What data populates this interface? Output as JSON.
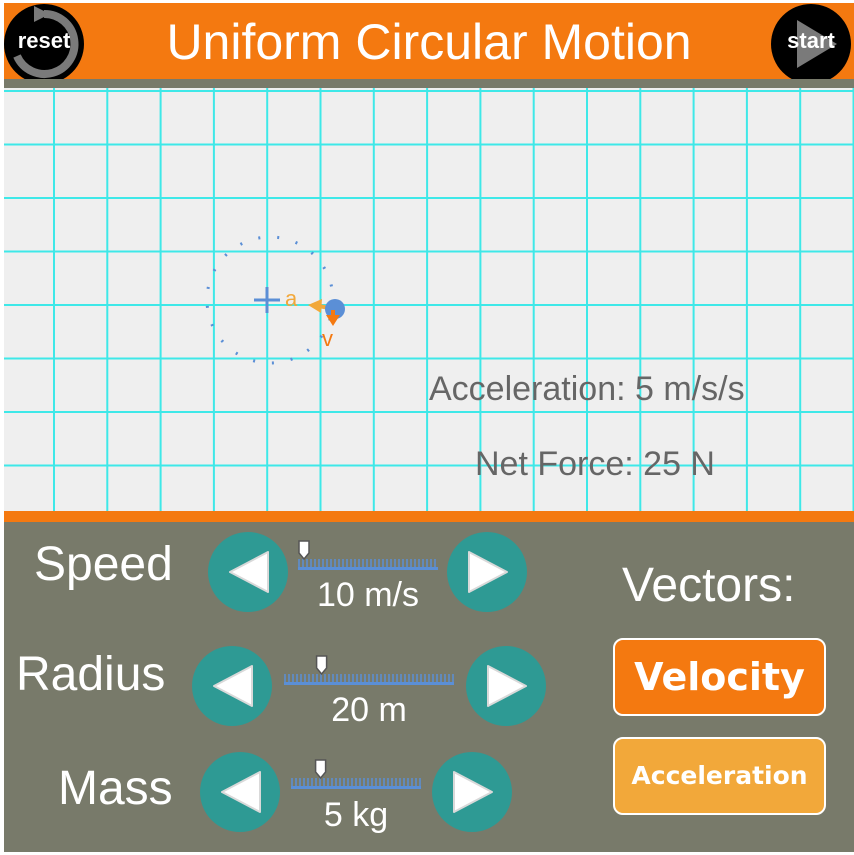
{
  "header": {
    "title": "Uniform Circular Motion",
    "reset_label": "reset",
    "start_label": "start"
  },
  "stage": {
    "acceleration_text": "Acceleration: 5 m/s/s",
    "net_force_text": "Net Force: 25 N",
    "acceleration_vector_label": "a",
    "velocity_vector_label": "v"
  },
  "controls": {
    "speed": {
      "label": "Speed",
      "value": "10 m/s",
      "level": 0.0
    },
    "radius": {
      "label": "Radius",
      "value": "20 m",
      "level": 0.2
    },
    "mass": {
      "label": "Mass",
      "value": "5 kg",
      "level": 0.2
    },
    "vectors_label": "Vectors:",
    "velocity_button": "Velocity",
    "acceleration_button": "Acceleration"
  },
  "colors": {
    "header_orange": "#f47910",
    "accel_yellow": "#f2a83a",
    "panel_gray": "#787a6a",
    "button_teal": "#2e9a94",
    "grid_cyan": "#3ee8e8",
    "object_blue": "#5b8fd6"
  },
  "icons": {
    "reset": "counterclockwise-arrow-icon",
    "start": "play-triangle-icon",
    "decrease": "left-triangle-icon",
    "increase": "right-triangle-icon"
  }
}
